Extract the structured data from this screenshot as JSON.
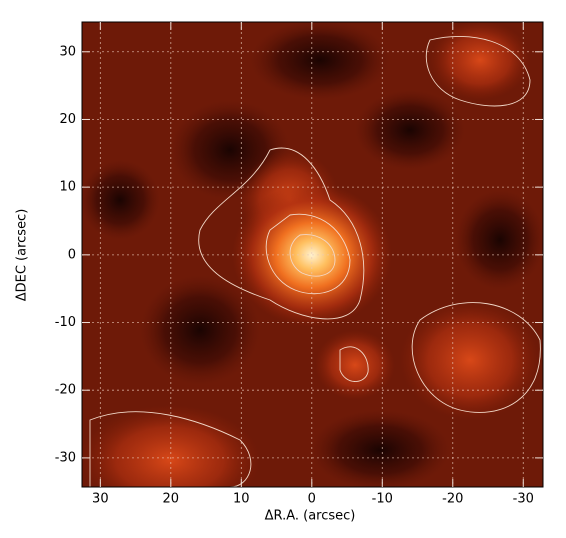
{
  "chart_data": {
    "type": "image",
    "xlabel": "ΔR.A. (arcsec)",
    "ylabel": "ΔDEC (arcsec)",
    "xlim": [
      32.6,
      -32.8
    ],
    "ylim": [
      -34.3,
      34.4
    ],
    "xticks": [
      30,
      20,
      10,
      0,
      -10,
      -20,
      -30
    ],
    "yticks": [
      -30,
      -20,
      -10,
      0,
      10,
      20,
      30
    ],
    "grid": true
  }
}
